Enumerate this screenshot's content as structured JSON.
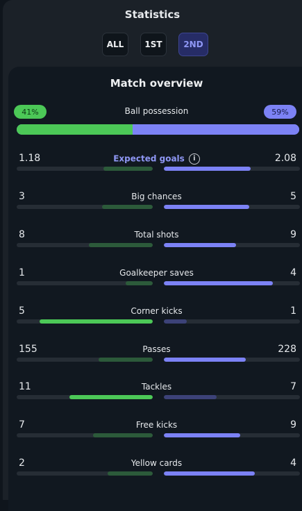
{
  "header": {
    "title": "Statistics"
  },
  "tabs": [
    {
      "label": "ALL",
      "active": false
    },
    {
      "label": "1ST",
      "active": false
    },
    {
      "label": "2ND",
      "active": true
    }
  ],
  "overview": {
    "title": "Match overview",
    "possession": {
      "label": "Ball possession",
      "home": "41%",
      "away": "59%",
      "home_value": 41,
      "away_value": 59
    },
    "stats": [
      {
        "label": "Expected goals",
        "home": "1.18",
        "away": "2.08",
        "home_share": 0.36,
        "away_share": 0.64,
        "winner": "away",
        "highlight": true,
        "info_icon": true
      },
      {
        "label": "Big chances",
        "home": "3",
        "away": "5",
        "home_share": 0.375,
        "away_share": 0.625,
        "winner": "away"
      },
      {
        "label": "Total shots",
        "home": "8",
        "away": "9",
        "home_share": 0.47,
        "away_share": 0.53,
        "winner": "away"
      },
      {
        "label": "Goalkeeper saves",
        "home": "1",
        "away": "4",
        "home_share": 0.2,
        "away_share": 0.8,
        "winner": "away"
      },
      {
        "label": "Corner kicks",
        "home": "5",
        "away": "1",
        "home_share": 0.83,
        "away_share": 0.17,
        "winner": "home"
      },
      {
        "label": "Passes",
        "home": "155",
        "away": "228",
        "home_share": 0.4,
        "away_share": 0.6,
        "winner": "away"
      },
      {
        "label": "Tackles",
        "home": "11",
        "away": "7",
        "home_share": 0.61,
        "away_share": 0.39,
        "winner": "home"
      },
      {
        "label": "Free kicks",
        "home": "7",
        "away": "9",
        "home_share": 0.44,
        "away_share": 0.56,
        "winner": "away"
      },
      {
        "label": "Yellow cards",
        "home": "2",
        "away": "4",
        "home_share": 0.33,
        "away_share": 0.67,
        "winner": "away"
      }
    ]
  },
  "colors": {
    "home_strong": "#4cc857",
    "home_dim": "#2c5a3a",
    "away_strong": "#7c82f5",
    "away_dim": "#3c4278",
    "possession_home_pill_bg": "#4cc857",
    "possession_home_pill_text": "#0d3b15",
    "possession_away_pill_bg": "#7c82f5",
    "possession_away_pill_text": "#151a4a"
  },
  "icons": {
    "info": "info-circle-icon"
  }
}
